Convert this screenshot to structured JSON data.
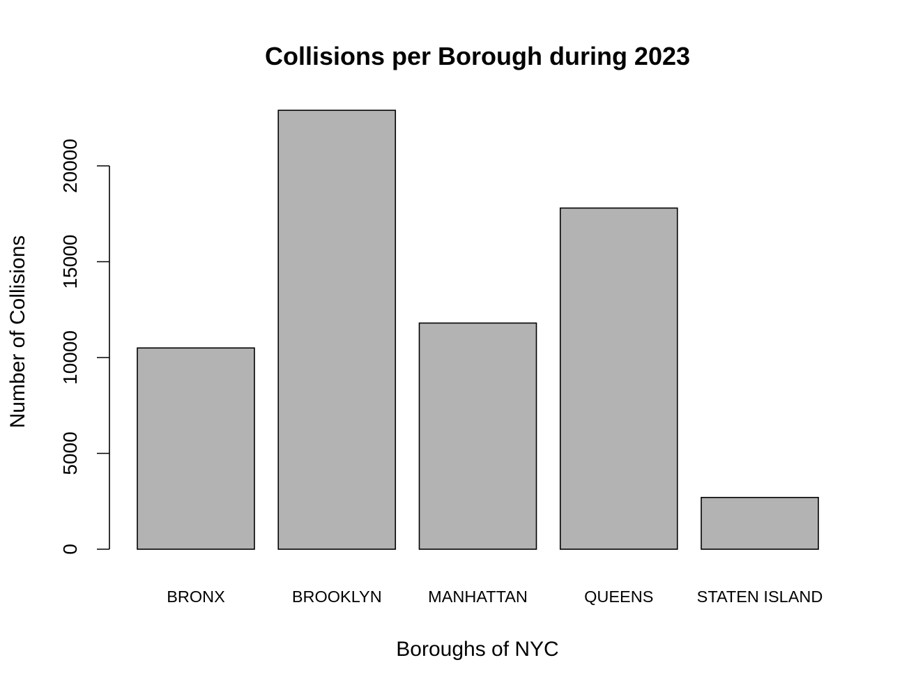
{
  "chart_data": {
    "type": "bar",
    "title": "Collisions per Borough during 2023",
    "xlabel": "Boroughs of NYC",
    "ylabel": "Number of Collisions",
    "categories": [
      "BRONX",
      "BROOKLYN",
      "MANHATTAN",
      "QUEENS",
      "STATEN ISLAND"
    ],
    "values": [
      10500,
      22900,
      11800,
      17800,
      2700
    ],
    "yticks": [
      0,
      5000,
      10000,
      15000,
      20000
    ],
    "ytick_labels": [
      "0",
      "5000",
      "10000",
      "15000",
      "20000"
    ],
    "ylim": [
      0,
      22900
    ],
    "grid": false,
    "legend": "none",
    "colors": {
      "bar_fill": "#b3b3b3",
      "bar_stroke": "#000000",
      "axis": "#000000",
      "background": "#ffffff"
    }
  }
}
